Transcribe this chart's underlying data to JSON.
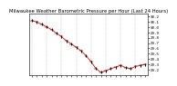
{
  "title": "Milwaukee Weather Barometric Pressure per Hour (Last 24 Hours)",
  "background_color": "#ffffff",
  "line_color": "#ff0000",
  "tick_color": "#000000",
  "grid_color": "#999999",
  "hours": [
    0,
    1,
    2,
    3,
    4,
    5,
    6,
    7,
    8,
    9,
    10,
    11,
    12,
    13,
    14,
    15,
    16,
    17,
    18,
    19,
    20,
    21,
    22,
    23
  ],
  "pressure": [
    30.12,
    30.09,
    30.05,
    30.0,
    29.95,
    29.88,
    29.82,
    29.74,
    29.68,
    29.62,
    29.55,
    29.46,
    29.35,
    29.22,
    29.15,
    29.18,
    29.22,
    29.25,
    29.28,
    29.24,
    29.22,
    29.26,
    29.28,
    29.3
  ],
  "ylim": [
    29.1,
    30.25
  ],
  "ytick_values": [
    29.2,
    29.3,
    29.4,
    29.5,
    29.6,
    29.7,
    29.8,
    29.9,
    30.0,
    30.1,
    30.2
  ],
  "title_fontsize": 3.8,
  "tick_fontsize": 3.0,
  "line_width": 0.6,
  "marker_size": 0.8,
  "bar_half": 0.025,
  "bar_lw": 0.7,
  "grid_lw": 0.3,
  "xlim": [
    -0.5,
    23.5
  ],
  "grid_hours": [
    0,
    3,
    6,
    9,
    12,
    15,
    18,
    21
  ]
}
